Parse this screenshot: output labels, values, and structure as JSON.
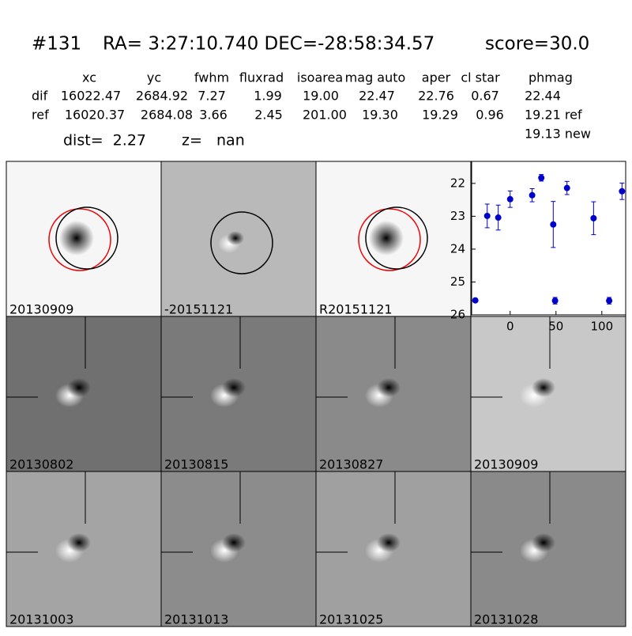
{
  "header": {
    "id": "#131",
    "coords": "RA= 3:27:10.740 DEC=-28:58:34.57",
    "score": "score=30.0"
  },
  "table": {
    "columns": [
      "xc",
      "yc",
      "fwhm",
      "fluxrad",
      "isoarea",
      "mag auto",
      "aper",
      "cl star",
      "phmag"
    ],
    "rows": [
      [
        "dif",
        "16022.47",
        "2684.92",
        "7.27",
        "1.99",
        "19.00",
        "22.47",
        "22.76",
        "0.67",
        "22.44"
      ],
      [
        "ref",
        "16020.37",
        "2684.08",
        "3.66",
        "2.45",
        "201.00",
        "19.30",
        "19.29",
        "0.96",
        "19.21 ref"
      ]
    ],
    "extra": "19.13 new"
  },
  "dist": "dist=  2.27",
  "z": "z=   nan",
  "panels": [
    {
      "label": "20130909"
    },
    {
      "label": "-20151121"
    },
    {
      "label": "R20151121"
    },
    null,
    {
      "label": "20130802"
    },
    {
      "label": "20130815"
    },
    {
      "label": "20130827"
    },
    {
      "label": "20130909",
      "color": "#ff0000"
    },
    {
      "label": "20131003"
    },
    {
      "label": "20131013"
    },
    {
      "label": "20131025"
    },
    {
      "label": "20131028"
    }
  ],
  "chart_data": {
    "type": "scatter",
    "x": [
      -38,
      -25,
      -13,
      0,
      24,
      34,
      47,
      49,
      62,
      91,
      108,
      122
    ],
    "values": [
      25.56,
      22.99,
      23.04,
      22.48,
      22.36,
      21.83,
      23.25,
      25.57,
      22.14,
      23.06,
      25.57,
      22.24
    ],
    "errors": [
      0.05,
      0.36,
      0.38,
      0.25,
      0.2,
      0.1,
      0.7,
      0.1,
      0.2,
      0.5,
      0.1,
      0.25
    ],
    "color": "#0000cc",
    "xlim": [
      -42,
      126
    ],
    "ylim": [
      26,
      21.33
    ],
    "xticks": [
      0,
      50,
      100
    ],
    "yticks": [
      22,
      23,
      24,
      25,
      26
    ]
  }
}
